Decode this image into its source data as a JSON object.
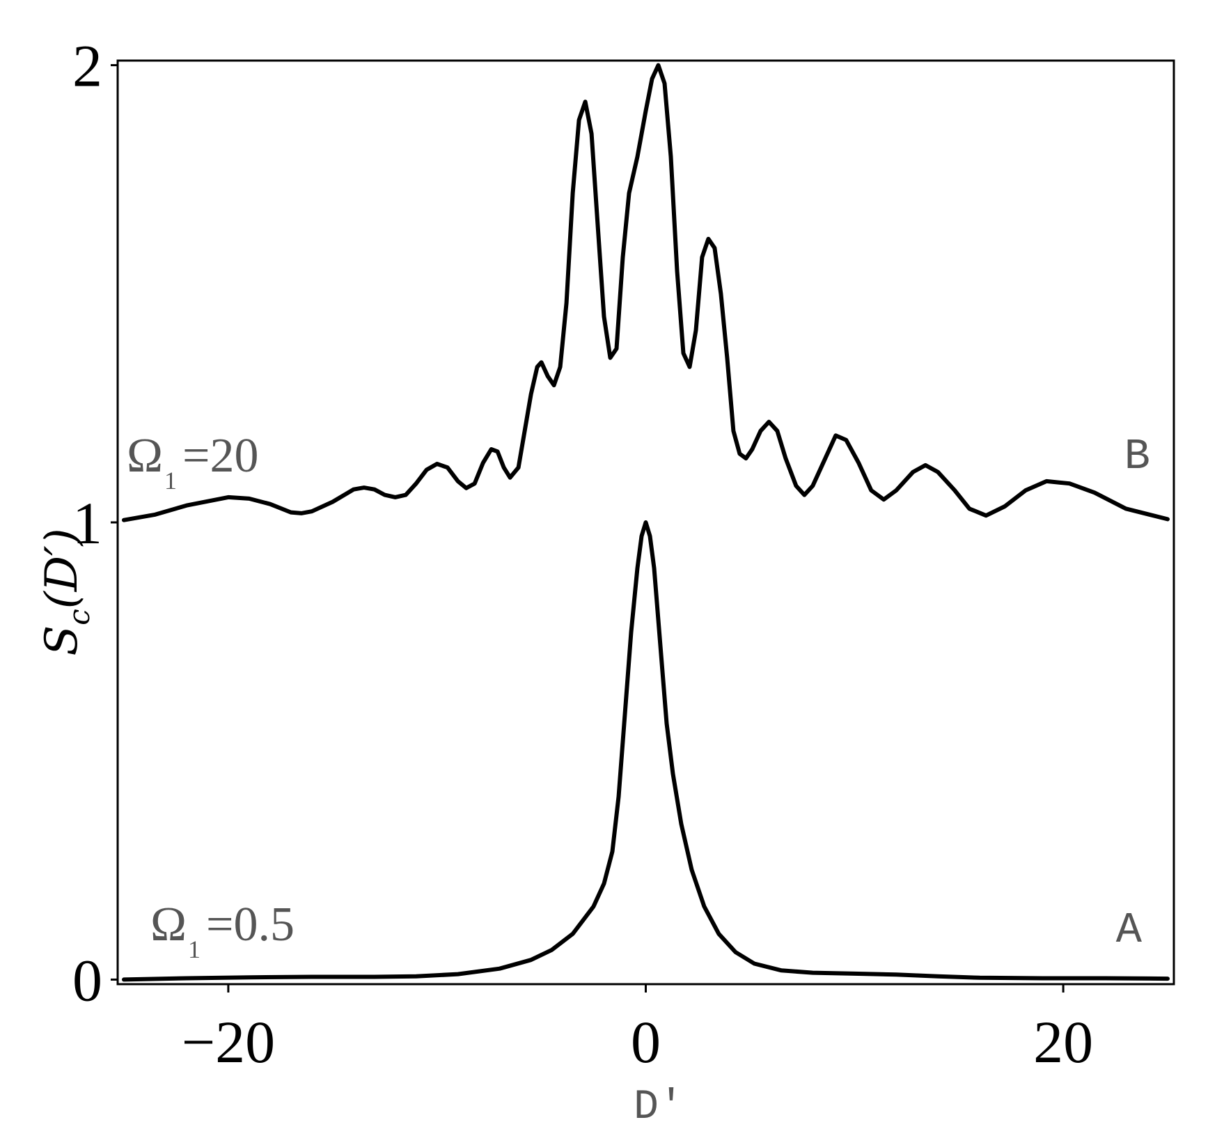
{
  "chart_data": {
    "type": "line",
    "xlabel": "D′",
    "ylabel": {
      "base": "S",
      "sub": "c",
      "arg": "(D′)"
    },
    "xlim": [
      -25.3,
      25.3
    ],
    "ylim": [
      -0.01,
      2.01
    ],
    "xticks": [
      -20,
      0,
      20
    ],
    "xtick_labels": [
      "−20",
      "0",
      "20"
    ],
    "yticks": [
      0,
      1,
      2
    ],
    "ytick_labels": [
      "0",
      "1",
      "2"
    ],
    "grid": false,
    "series": [
      {
        "name": "A",
        "annotation": {
          "symbol": "Ω",
          "sub": "1",
          "value": "=0.5"
        },
        "color": "#000000",
        "points": [
          [
            -25,
            0.0
          ],
          [
            -22,
            0.003
          ],
          [
            -19,
            0.005
          ],
          [
            -16,
            0.006
          ],
          [
            -13,
            0.006
          ],
          [
            -11,
            0.007
          ],
          [
            -9,
            0.012
          ],
          [
            -7,
            0.024
          ],
          [
            -5.5,
            0.043
          ],
          [
            -4.5,
            0.065
          ],
          [
            -3.5,
            0.1
          ],
          [
            -2.5,
            0.16
          ],
          [
            -2,
            0.21
          ],
          [
            -1.6,
            0.28
          ],
          [
            -1.3,
            0.4
          ],
          [
            -1,
            0.58
          ],
          [
            -0.7,
            0.76
          ],
          [
            -0.4,
            0.9
          ],
          [
            -0.2,
            0.97
          ],
          [
            0,
            1.0
          ],
          [
            0.2,
            0.97
          ],
          [
            0.4,
            0.9
          ],
          [
            0.7,
            0.73
          ],
          [
            1,
            0.56
          ],
          [
            1.3,
            0.45
          ],
          [
            1.7,
            0.34
          ],
          [
            2.2,
            0.24
          ],
          [
            2.8,
            0.16
          ],
          [
            3.5,
            0.1
          ],
          [
            4.3,
            0.06
          ],
          [
            5.2,
            0.035
          ],
          [
            6.5,
            0.02
          ],
          [
            8,
            0.015
          ],
          [
            10,
            0.013
          ],
          [
            12,
            0.011
          ],
          [
            14,
            0.007
          ],
          [
            16,
            0.004
          ],
          [
            19,
            0.003
          ],
          [
            22,
            0.003
          ],
          [
            25,
            0.002
          ]
        ]
      },
      {
        "name": "B",
        "annotation": {
          "symbol": "Ω",
          "sub": "1",
          "value": "=20"
        },
        "color": "#000000",
        "points": [
          [
            -25,
            1.005
          ],
          [
            -23.5,
            1.017
          ],
          [
            -22,
            1.037
          ],
          [
            -20,
            1.055
          ],
          [
            -19,
            1.052
          ],
          [
            -18,
            1.04
          ],
          [
            -17,
            1.022
          ],
          [
            -16.5,
            1.02
          ],
          [
            -16,
            1.024
          ],
          [
            -15,
            1.045
          ],
          [
            -14,
            1.072
          ],
          [
            -13.5,
            1.076
          ],
          [
            -13,
            1.072
          ],
          [
            -12.5,
            1.06
          ],
          [
            -12,
            1.055
          ],
          [
            -11.5,
            1.06
          ],
          [
            -11,
            1.085
          ],
          [
            -10.5,
            1.115
          ],
          [
            -10,
            1.128
          ],
          [
            -9.5,
            1.12
          ],
          [
            -9,
            1.09
          ],
          [
            -8.6,
            1.075
          ],
          [
            -8.2,
            1.085
          ],
          [
            -7.8,
            1.13
          ],
          [
            -7.4,
            1.16
          ],
          [
            -7.1,
            1.155
          ],
          [
            -6.8,
            1.12
          ],
          [
            -6.5,
            1.098
          ],
          [
            -6.1,
            1.12
          ],
          [
            -5.8,
            1.2
          ],
          [
            -5.5,
            1.28
          ],
          [
            -5.2,
            1.34
          ],
          [
            -5,
            1.35
          ],
          [
            -4.7,
            1.32
          ],
          [
            -4.4,
            1.3
          ],
          [
            -4.1,
            1.34
          ],
          [
            -3.8,
            1.48
          ],
          [
            -3.5,
            1.72
          ],
          [
            -3.2,
            1.88
          ],
          [
            -2.9,
            1.92
          ],
          [
            -2.6,
            1.85
          ],
          [
            -2.3,
            1.65
          ],
          [
            -2,
            1.45
          ],
          [
            -1.7,
            1.36
          ],
          [
            -1.4,
            1.38
          ],
          [
            -1.1,
            1.58
          ],
          [
            -0.8,
            1.72
          ],
          [
            -0.4,
            1.8
          ],
          [
            0,
            1.9
          ],
          [
            0.3,
            1.97
          ],
          [
            0.6,
            2.0
          ],
          [
            0.9,
            1.96
          ],
          [
            1.2,
            1.8
          ],
          [
            1.5,
            1.55
          ],
          [
            1.8,
            1.37
          ],
          [
            2.1,
            1.34
          ],
          [
            2.4,
            1.42
          ],
          [
            2.7,
            1.58
          ],
          [
            3,
            1.62
          ],
          [
            3.3,
            1.6
          ],
          [
            3.6,
            1.5
          ],
          [
            3.9,
            1.36
          ],
          [
            4.2,
            1.2
          ],
          [
            4.5,
            1.15
          ],
          [
            4.8,
            1.14
          ],
          [
            5.1,
            1.16
          ],
          [
            5.5,
            1.2
          ],
          [
            5.9,
            1.22
          ],
          [
            6.3,
            1.2
          ],
          [
            6.7,
            1.14
          ],
          [
            7.2,
            1.08
          ],
          [
            7.6,
            1.06
          ],
          [
            8,
            1.08
          ],
          [
            8.6,
            1.14
          ],
          [
            9.1,
            1.19
          ],
          [
            9.6,
            1.18
          ],
          [
            10.2,
            1.13
          ],
          [
            10.8,
            1.07
          ],
          [
            11.4,
            1.05
          ],
          [
            12,
            1.07
          ],
          [
            12.8,
            1.11
          ],
          [
            13.4,
            1.125
          ],
          [
            14,
            1.11
          ],
          [
            14.8,
            1.07
          ],
          [
            15.5,
            1.03
          ],
          [
            16.3,
            1.015
          ],
          [
            17.2,
            1.035
          ],
          [
            18.2,
            1.07
          ],
          [
            19.2,
            1.09
          ],
          [
            20.3,
            1.085
          ],
          [
            21.5,
            1.065
          ],
          [
            23,
            1.03
          ],
          [
            25,
            1.007
          ]
        ]
      }
    ]
  }
}
